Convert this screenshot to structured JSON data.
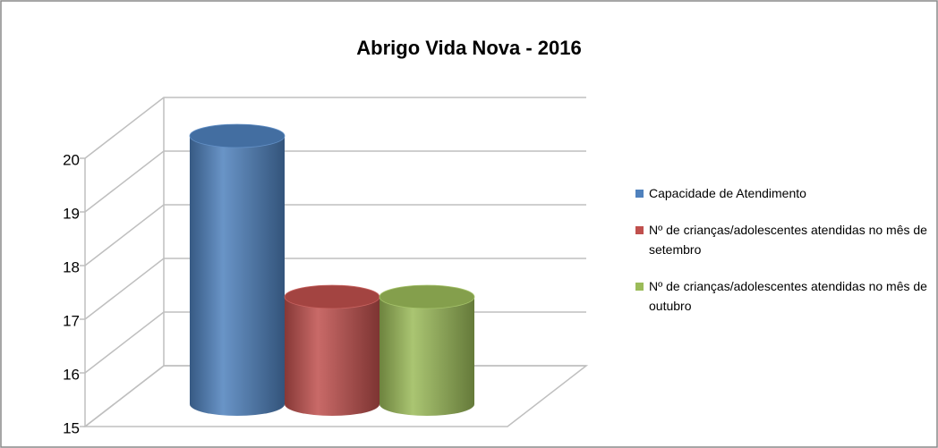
{
  "chart_data": {
    "type": "cylinder",
    "title": "Abrigo Vida Nova - 2016",
    "series": [
      {
        "name": "Capacidade de Atendimento",
        "color": "#4f81bd",
        "values": [
          20
        ]
      },
      {
        "name": "Nº de crianças/adolescentes atendidas no mês de setembro",
        "color": "#c0504d",
        "values": [
          17
        ]
      },
      {
        "name": "Nº de crianças/adolescentes atendidas no mês de outubro",
        "color": "#9bbb59",
        "values": [
          17
        ]
      }
    ],
    "ylim": [
      15,
      20
    ],
    "yticks": [
      15,
      16,
      17,
      18,
      19,
      20
    ],
    "grid": true,
    "legend": "right"
  }
}
